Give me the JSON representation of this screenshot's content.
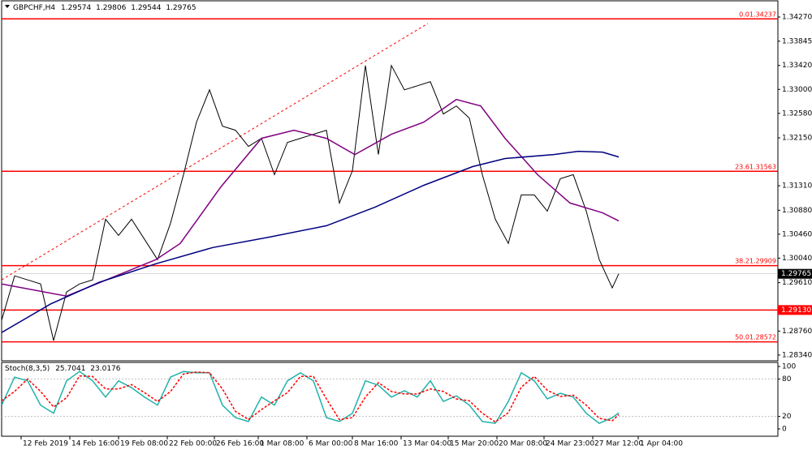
{
  "chart_data": [
    {
      "type": "line",
      "symbol": "GBPCHF,H4",
      "ohlc": [
        1.29574,
        1.29806,
        1.29544,
        1.29765
      ],
      "xlim": [
        0,
        239
      ],
      "ylim": [
        1.28239,
        1.34554
      ],
      "xticks": [
        {
          "value": 6,
          "label": "12 Feb 2019"
        },
        {
          "value": 21,
          "label": "14 Feb 16:00"
        },
        {
          "value": 36,
          "label": "19 Feb 08:00"
        },
        {
          "value": 51,
          "label": "22 Feb 00:00"
        },
        {
          "value": 65.5,
          "label": "26 Feb 16:00"
        },
        {
          "value": 79,
          "label": "1 Mar 08:00"
        },
        {
          "value": 94,
          "label": "6 Mar 00:00"
        },
        {
          "value": 108,
          "label": "8 Mar 16:00"
        },
        {
          "value": 123,
          "label": "13 Mar 04:00"
        },
        {
          "value": 137.5,
          "label": "15 Mar 20:00"
        },
        {
          "value": 152.5,
          "label": "20 Mar 08:00"
        },
        {
          "value": 167,
          "label": "24 Mar 23:00"
        },
        {
          "value": 182,
          "label": "27 Mar 12:00"
        },
        {
          "value": 196,
          "label": "1 Apr 04:00"
        }
      ],
      "yticks": [
        {
          "value": 1.3427,
          "label": "1.34270"
        },
        {
          "value": 1.33845,
          "label": "1.33845"
        },
        {
          "value": 1.3342,
          "label": "1.33420"
        },
        {
          "value": 1.33,
          "label": "1.33000"
        },
        {
          "value": 1.3258,
          "label": "1.32580"
        },
        {
          "value": 1.3215,
          "label": "1.32150"
        },
        {
          "value": 1.3131,
          "label": "1.31310"
        },
        {
          "value": 1.3088,
          "label": "1.30880"
        },
        {
          "value": 1.3046,
          "label": "1.30460"
        },
        {
          "value": 1.3004,
          "label": "1.30040"
        },
        {
          "value": 1.2961,
          "label": "1.29610"
        },
        {
          "value": 1.2876,
          "label": "1.28760"
        },
        {
          "value": 1.2834,
          "label": "1.28340"
        }
      ],
      "series": [
        {
          "color": "#000000",
          "x": [
            0,
            4,
            8,
            12,
            16,
            20,
            24,
            28,
            32,
            36,
            40,
            44,
            48,
            52,
            56,
            60,
            64,
            68,
            72,
            76,
            80,
            84,
            88,
            92,
            96,
            100,
            104,
            108,
            112,
            116,
            120,
            124,
            128,
            132,
            136,
            140,
            144,
            148,
            152,
            156,
            160,
            164,
            168,
            172,
            176,
            180,
            184,
            188,
            190
          ],
          "values": [
            1.2895,
            1.2973,
            1.29659,
            1.29588,
            1.28595,
            1.29446,
            1.29588,
            1.29659,
            1.30723,
            1.30439,
            1.30723,
            1.30369,
            1.30014,
            1.30652,
            1.31504,
            1.32426,
            1.32993,
            1.32355,
            1.32284,
            1.32,
            1.32142,
            1.31504,
            1.32071,
            1.32142,
            1.32213,
            1.32284,
            1.31007,
            1.31574,
            1.33419,
            1.31858,
            1.33419,
            1.32993,
            1.33064,
            1.33135,
            1.32568,
            1.32709,
            1.32497,
            1.31504,
            1.30723,
            1.30298,
            1.31149,
            1.31149,
            1.30865,
            1.31433,
            1.31504,
            1.30865,
            1.30014,
            1.29517,
            1.29765
          ]
        },
        {
          "color": "#800080",
          "x": [
            0,
            20,
            47.5,
            55,
            67.5,
            80,
            90,
            100,
            108.75,
            120,
            130,
            140,
            147.5,
            155,
            165,
            175,
            185,
            190
          ],
          "values": [
            1.29588,
            1.29374,
            1.30014,
            1.30298,
            1.3129,
            1.32142,
            1.32284,
            1.32142,
            1.31858,
            1.32213,
            1.32426,
            1.32823,
            1.32709,
            1.32142,
            1.31504,
            1.31007,
            1.30836,
            1.30694
          ]
        },
        {
          "color": "#000080",
          "x": [
            0,
            15,
            30,
            47.5,
            65,
            82.5,
            100,
            115,
            130,
            145,
            155,
            170,
            177.5,
            185,
            190
          ],
          "values": [
            1.28736,
            1.29233,
            1.29616,
            1.29942,
            1.30226,
            1.3041,
            1.30609,
            1.30935,
            1.31318,
            1.31645,
            1.31787,
            1.31858,
            1.31914,
            1.319,
            1.31815
          ]
        }
      ],
      "trendline": {
        "color": "#ff0000",
        "x": [
          0,
          131.25
        ],
        "values": [
          1.29659,
          1.34157
        ]
      },
      "fib_levels": [
        {
          "level": "0.0",
          "value": 1.34237
        },
        {
          "level": "23.6",
          "value": 1.31563
        },
        {
          "level": "38.2",
          "value": 1.29909
        },
        {
          "level": "50.0",
          "value": 1.28572
        }
      ],
      "support": {
        "value": 1.2913,
        "label": "1.29130"
      },
      "level_color": "#ff0000"
    },
    {
      "type": "line",
      "title": "Stoch(8,3,5)",
      "xlim": [
        0,
        239
      ],
      "ylim": [
        -11.7,
        106.5
      ],
      "yticks": [
        100,
        80,
        20,
        0
      ],
      "series": [
        {
          "color": "#20b2aa",
          "style": "solid",
          "x": [
            0,
            4,
            8,
            12,
            16,
            20,
            24,
            28,
            32,
            36,
            40,
            44,
            48,
            52,
            56,
            60,
            64,
            68,
            72,
            76,
            80,
            84,
            88,
            92,
            96,
            100,
            104,
            108,
            112,
            116,
            120,
            124,
            128,
            132,
            136,
            140,
            144,
            148,
            152,
            156,
            160,
            164,
            168,
            172,
            176,
            180,
            184,
            188,
            190
          ],
          "values": [
            38,
            83,
            77,
            38,
            25,
            77,
            92,
            77,
            51,
            77,
            66,
            51,
            38,
            83,
            92,
            90,
            90,
            38,
            18,
            12,
            51,
            38,
            77,
            90,
            77,
            18,
            12,
            25,
            77,
            70,
            51,
            61,
            51,
            77,
            44,
            53,
            38,
            12,
            9,
            44,
            90,
            77,
            48,
            57,
            51,
            25,
            9,
            18,
            25.7041
          ]
        },
        {
          "color": "#ff0000",
          "style": "dashed",
          "x": [
            0,
            4,
            8,
            12,
            16,
            20,
            24,
            28,
            32,
            36,
            40,
            44,
            48,
            52,
            56,
            60,
            64,
            68,
            72,
            76,
            80,
            84,
            88,
            92,
            96,
            100,
            104,
            108,
            112,
            116,
            120,
            124,
            128,
            132,
            136,
            140,
            144,
            148,
            152,
            156,
            160,
            164,
            168,
            172,
            176,
            180,
            184,
            188,
            190
          ],
          "values": [
            45,
            60,
            80,
            60,
            35,
            50,
            85,
            84,
            64,
            64,
            71,
            58,
            44,
            60,
            88,
            91,
            90,
            64,
            28,
            15,
            31,
            45,
            58,
            84,
            84,
            48,
            15,
            18,
            51,
            74,
            60,
            56,
            56,
            64,
            60,
            48,
            45,
            25,
            11,
            26,
            67,
            84,
            62,
            52,
            54,
            38,
            17,
            13,
            23.0176
          ]
        }
      ]
    }
  ]
}
